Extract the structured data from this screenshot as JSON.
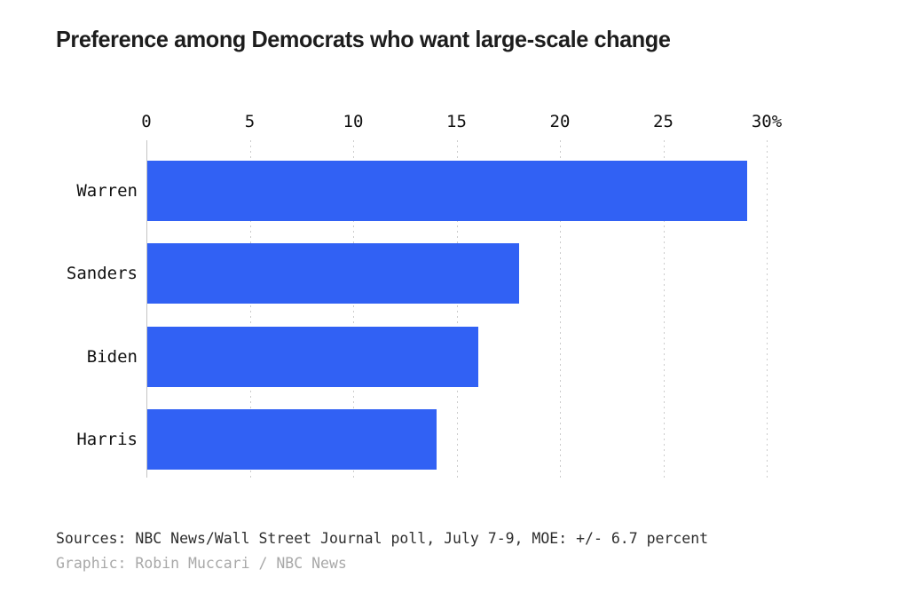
{
  "title": "Preference among Democrats who want large-scale change",
  "chart_data": {
    "type": "bar",
    "orientation": "horizontal",
    "title": "Preference among Democrats who want large-scale change",
    "categories": [
      "Warren",
      "Sanders",
      "Biden",
      "Harris"
    ],
    "values": [
      29,
      18,
      16,
      14
    ],
    "unit": "percent",
    "xlim": [
      0,
      30
    ],
    "x_ticks": [
      0,
      5,
      10,
      15,
      20,
      25,
      30
    ],
    "x_tick_labels": [
      "0",
      "5",
      "10",
      "15",
      "20",
      "25",
      "30%"
    ],
    "xlabel": "",
    "ylabel": "",
    "legend": "none",
    "grid": "vertical-dashed",
    "axis_position": "top",
    "bar_color": "#3161f4"
  },
  "footer": {
    "sources": "Sources: NBC News/Wall Street Journal poll, July 7-9, MOE: +/- 6.7 percent",
    "credit": "Graphic: Robin Muccari / NBC News"
  },
  "colors": {
    "background": "#ffffff",
    "bar": "#3161f4",
    "gridline": "#cccccc",
    "axis_line": "#c4c4c4",
    "title_text": "#1d1d1d",
    "axis_text": "#111111",
    "source_text": "#2e2e2e",
    "credit_text": "#a8a8a8"
  }
}
